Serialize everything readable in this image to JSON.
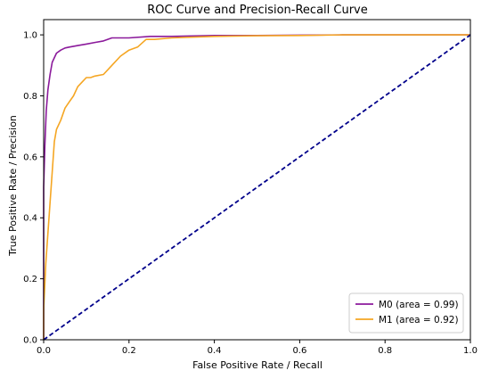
{
  "chart_data": {
    "type": "line",
    "title": "ROC Curve and Precision-Recall Curve",
    "xlabel": "False Positive Rate / Recall",
    "ylabel": "True Positive Rate / Precision",
    "xlim": [
      0.0,
      1.0
    ],
    "ylim": [
      0.0,
      1.05
    ],
    "xticks": [
      0.0,
      0.2,
      0.4,
      0.6,
      0.8,
      1.0
    ],
    "yticks": [
      0.0,
      0.2,
      0.4,
      0.6,
      0.8,
      1.0
    ],
    "xtick_labels": [
      "0.0",
      "0.2",
      "0.4",
      "0.6",
      "0.8",
      "1.0"
    ],
    "ytick_labels": [
      "0.0",
      "0.2",
      "0.4",
      "0.6",
      "0.8",
      "1.0"
    ],
    "grid": false,
    "legend_position": "bottom-right",
    "series": [
      {
        "name": "M0 (area = 0.99)",
        "color": "#8B1A9B",
        "style": "solid",
        "x": [
          0.0,
          0.0,
          0.003,
          0.006,
          0.01,
          0.015,
          0.02,
          0.03,
          0.04,
          0.05,
          0.06,
          0.08,
          0.1,
          0.12,
          0.14,
          0.16,
          0.2,
          0.25,
          0.3,
          0.4,
          0.5,
          0.6,
          0.7,
          0.8,
          0.9,
          1.0
        ],
        "y": [
          0.0,
          0.5,
          0.64,
          0.75,
          0.82,
          0.87,
          0.91,
          0.94,
          0.95,
          0.957,
          0.96,
          0.965,
          0.97,
          0.975,
          0.98,
          0.99,
          0.99,
          0.995,
          0.995,
          0.998,
          0.998,
          0.999,
          1.0,
          1.0,
          1.0,
          1.0
        ]
      },
      {
        "name": "M1 (area = 0.92)",
        "color": "#F5A623",
        "style": "solid",
        "x": [
          0.0,
          0.0,
          0.005,
          0.01,
          0.015,
          0.02,
          0.025,
          0.03,
          0.04,
          0.05,
          0.06,
          0.07,
          0.08,
          0.09,
          0.1,
          0.11,
          0.12,
          0.14,
          0.16,
          0.18,
          0.2,
          0.22,
          0.24,
          0.26,
          0.3,
          0.4,
          0.5,
          0.6,
          0.7,
          0.8,
          0.9,
          1.0
        ],
        "y": [
          0.0,
          0.1,
          0.25,
          0.35,
          0.45,
          0.55,
          0.65,
          0.69,
          0.72,
          0.76,
          0.78,
          0.8,
          0.83,
          0.845,
          0.86,
          0.86,
          0.865,
          0.87,
          0.9,
          0.93,
          0.95,
          0.96,
          0.985,
          0.985,
          0.99,
          0.995,
          0.997,
          0.998,
          1.0,
          1.0,
          1.0,
          1.0
        ]
      },
      {
        "name": "",
        "color": "#00008B",
        "style": "dashed",
        "x": [
          0.0,
          1.0
        ],
        "y": [
          0.0,
          1.0
        ]
      }
    ]
  }
}
